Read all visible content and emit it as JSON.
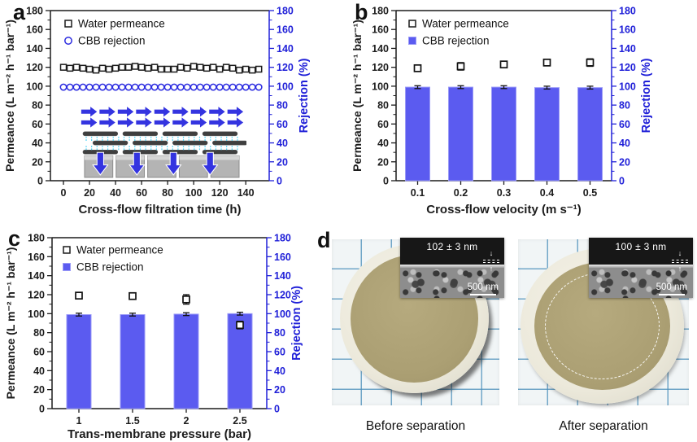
{
  "figure": {
    "panels": {
      "a": {
        "letter": "a"
      },
      "b": {
        "letter": "b"
      },
      "c": {
        "letter": "c"
      },
      "d": {
        "letter": "d",
        "photos": [
          {
            "caption": "Before separation",
            "inset": {
              "thickness_label": "102 ± 3 nm",
              "scalebar_label": "500 nm"
            },
            "dashed_circle": false
          },
          {
            "caption": "After separation",
            "inset": {
              "thickness_label": "100 ± 3 nm",
              "scalebar_label": "500 nm"
            },
            "dashed_circle": true
          }
        ]
      }
    }
  },
  "colors": {
    "axis_black": "#1c1c1c",
    "axis_blue": "#2020d8",
    "bar_fill": "#5b5bf0",
    "bar_stroke": "#9a9af7",
    "circle_blue": "#2a2ae0",
    "schematic_blue": "#3434e0",
    "schematic_cyan": "#4fd2f5"
  },
  "chart_data": [
    {
      "panel": "a",
      "type": "scatter",
      "title": "",
      "xlabel": "Cross-flow filtration time (h)",
      "ylabel_left": "Permeance (L m⁻² h⁻¹ bar⁻¹)",
      "ylabel_right": "Rejection (%)",
      "xlim": [
        -10,
        158
      ],
      "xticks": [
        0,
        20,
        40,
        60,
        80,
        100,
        120,
        140
      ],
      "ylim": [
        0,
        180
      ],
      "ytick_step": 20,
      "grid": false,
      "legend_position": "top-left",
      "legend": [
        {
          "label": "Water permeance",
          "marker": "open-square",
          "color": "#1c1c1c"
        },
        {
          "label": "CBB rejection",
          "marker": "open-circle",
          "color": "#2a2ae0"
        }
      ],
      "series": [
        {
          "name": "Water permeance",
          "marker": "open-square",
          "color": "#1c1c1c",
          "axis": "left",
          "x": [
            0,
            5,
            10,
            15,
            20,
            25,
            30,
            35,
            40,
            45,
            50,
            55,
            60,
            65,
            70,
            75,
            80,
            85,
            90,
            95,
            100,
            105,
            110,
            115,
            120,
            125,
            130,
            135,
            140,
            145,
            150
          ],
          "y": [
            120,
            119,
            120,
            119,
            118,
            117,
            119,
            118,
            119,
            120,
            120,
            121,
            120,
            119,
            120,
            118,
            118,
            118,
            120,
            119,
            121,
            120,
            119,
            120,
            118,
            120,
            119,
            117,
            118,
            117,
            118
          ]
        },
        {
          "name": "CBB rejection",
          "marker": "open-circle",
          "color": "#2a2ae0",
          "axis": "right",
          "x": [
            0,
            5,
            10,
            15,
            20,
            25,
            30,
            35,
            40,
            45,
            50,
            55,
            60,
            65,
            70,
            75,
            80,
            85,
            90,
            95,
            100,
            105,
            110,
            115,
            120,
            125,
            130,
            135,
            140,
            145,
            150
          ],
          "y": [
            99,
            99,
            99,
            99,
            99,
            99,
            99,
            99,
            99,
            99,
            99,
            99,
            99,
            99,
            99,
            99,
            99,
            99,
            99,
            99,
            99,
            99,
            99,
            99,
            99,
            99,
            99,
            99,
            99,
            99,
            99
          ]
        }
      ]
    },
    {
      "panel": "b",
      "type": "bar",
      "title": "",
      "xlabel": "Cross-flow velocity (m s⁻¹)",
      "ylabel_left": "Permeance (L m⁻² h⁻¹ bar⁻¹)",
      "ylabel_right": "Rejection (%)",
      "categories": [
        "0.1",
        "0.2",
        "0.3",
        "0.4",
        "0.5"
      ],
      "ylim": [
        0,
        180
      ],
      "ytick_step": 20,
      "grid": false,
      "legend_position": "top-left",
      "legend": [
        {
          "label": "Water permeance",
          "marker": "open-square",
          "color": "#1c1c1c"
        },
        {
          "label": "CBB rejection",
          "marker": "filled-square",
          "color": "#5b5bf0"
        }
      ],
      "bars": {
        "name": "CBB rejection",
        "axis": "right",
        "color": "#5b5bf0",
        "stroke": "#9a9af7",
        "values": [
          99,
          99,
          99,
          98.5,
          98.5
        ],
        "errors": [
          1.5,
          1.5,
          1.5,
          1.5,
          1.5
        ]
      },
      "points": {
        "name": "Water permeance",
        "axis": "left",
        "color": "#1c1c1c",
        "values": [
          119,
          121,
          123,
          125,
          125
        ],
        "errors": [
          3,
          4,
          3,
          2,
          4
        ]
      }
    },
    {
      "panel": "c",
      "type": "bar",
      "title": "",
      "xlabel": "Trans-membrane pressure (bar)",
      "ylabel_left": "Permeance (L m⁻² h⁻¹ bar⁻¹)",
      "ylabel_right": "Rejection (%)",
      "categories": [
        "1",
        "1.5",
        "2",
        "2.5"
      ],
      "ylim": [
        0,
        180
      ],
      "ytick_step": 20,
      "grid": false,
      "legend_position": "top-left",
      "legend": [
        {
          "label": "Water permeance",
          "marker": "open-square",
          "color": "#1c1c1c"
        },
        {
          "label": "CBB rejection",
          "marker": "filled-square",
          "color": "#5b5bf0"
        }
      ],
      "bars": {
        "name": "CBB rejection",
        "axis": "right",
        "color": "#5b5bf0",
        "stroke": "#9a9af7",
        "values": [
          99,
          99,
          99.5,
          100
        ],
        "errors": [
          1.5,
          1.5,
          1.5,
          1.5
        ]
      },
      "points": {
        "name": "Water permeance",
        "axis": "left",
        "color": "#1c1c1c",
        "values": [
          119,
          118.5,
          115,
          88
        ],
        "errors": [
          3,
          3,
          5,
          4
        ]
      }
    }
  ]
}
